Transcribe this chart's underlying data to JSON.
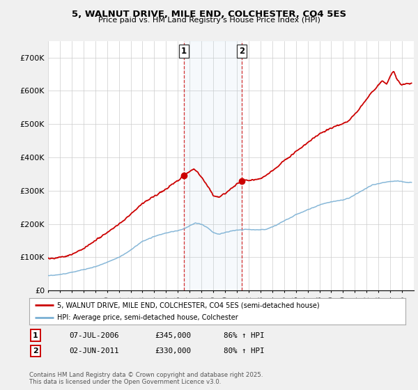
{
  "title": "5, WALNUT DRIVE, MILE END, COLCHESTER, CO4 5ES",
  "subtitle": "Price paid vs. HM Land Registry's House Price Index (HPI)",
  "ylim": [
    0,
    750000
  ],
  "yticks": [
    0,
    100000,
    200000,
    300000,
    400000,
    500000,
    600000,
    700000
  ],
  "ytick_labels": [
    "£0",
    "£100K",
    "£200K",
    "£300K",
    "£400K",
    "£500K",
    "£600K",
    "£700K"
  ],
  "background_color": "#f0f0f0",
  "plot_background": "#ffffff",
  "grid_color": "#cccccc",
  "house_color": "#cc0000",
  "hpi_color": "#7ab0d4",
  "sale1_date": 2006.52,
  "sale1_price": 345000,
  "sale2_date": 2011.42,
  "sale2_price": 330000,
  "legend_house": "5, WALNUT DRIVE, MILE END, COLCHESTER, CO4 5ES (semi-detached house)",
  "legend_hpi": "HPI: Average price, semi-detached house, Colchester",
  "table_row1": [
    "1",
    "07-JUL-2006",
    "£345,000",
    "86% ↑ HPI"
  ],
  "table_row2": [
    "2",
    "02-JUN-2011",
    "£330,000",
    "80% ↑ HPI"
  ],
  "copyright_text": "Contains HM Land Registry data © Crown copyright and database right 2025.\nThis data is licensed under the Open Government Licence v3.0.",
  "xmin": 1995,
  "xmax": 2026
}
